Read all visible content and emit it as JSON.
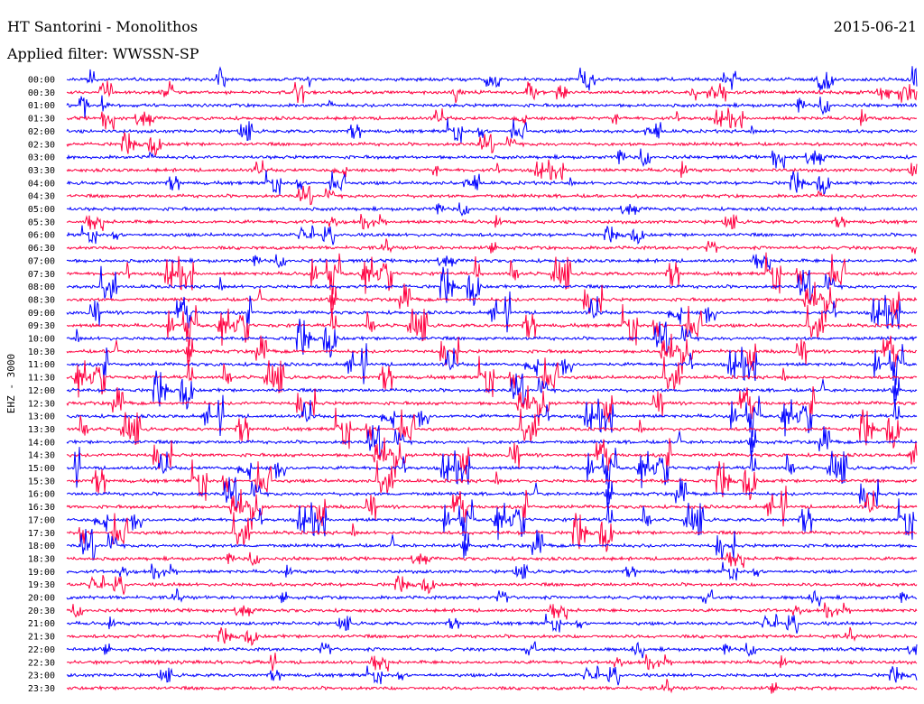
{
  "header": {
    "station": "HT Santorini - Monolithos",
    "filter": "Applied filter: WWSSN-SP",
    "date": "2015-06-21"
  },
  "chart_data": {
    "type": "line",
    "title": "HT Santorini - Monolithos",
    "ylabel": "EHZ - 3000",
    "row_labels": [
      "00:00",
      "00:30",
      "01:00",
      "01:30",
      "02:00",
      "02:30",
      "03:00",
      "03:30",
      "04:00",
      "04:30",
      "05:00",
      "05:30",
      "06:00",
      "06:30",
      "07:00",
      "07:30",
      "08:00",
      "08:30",
      "09:00",
      "09:30",
      "10:00",
      "10:30",
      "11:00",
      "11:30",
      "12:00",
      "12:30",
      "13:00",
      "13:30",
      "14:00",
      "14:30",
      "15:00",
      "15:30",
      "16:00",
      "16:30",
      "17:00",
      "17:30",
      "18:00",
      "18:30",
      "19:00",
      "19:30",
      "20:00",
      "20:30",
      "21:00",
      "21:30",
      "22:00",
      "22:30",
      "23:00",
      "23:30"
    ],
    "series_colors": [
      "#0000ff",
      "#ff0040"
    ],
    "row_duration_minutes": 30,
    "grid": false
  }
}
